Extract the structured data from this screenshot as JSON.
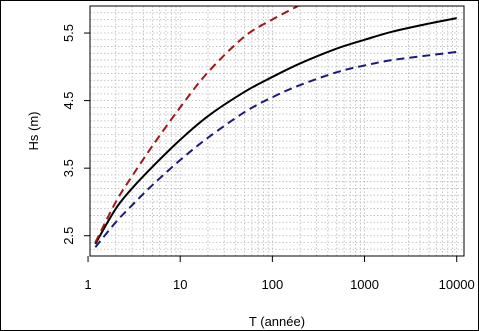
{
  "chart_data": {
    "type": "line",
    "title": "",
    "xlabel": "T (année)",
    "ylabel": "Hs (m)",
    "xscale": "log",
    "xlim": [
      1.05,
      12000
    ],
    "ylim": [
      2.2,
      5.9
    ],
    "xticks": [
      {
        "value": 1,
        "label": "1"
      },
      {
        "value": 10,
        "label": "10"
      },
      {
        "value": 100,
        "label": "100"
      },
      {
        "value": 1000,
        "label": "1000"
      },
      {
        "value": 10000,
        "label": "10000"
      }
    ],
    "yticks": [
      {
        "value": 2.5,
        "label": "2.5"
      },
      {
        "value": 3.5,
        "label": "3.5"
      },
      {
        "value": 4.5,
        "label": "4.5"
      },
      {
        "value": 5.5,
        "label": "5.5"
      }
    ],
    "grid": true,
    "series": [
      {
        "color": "#000000",
        "dash": "solid",
        "x": [
          1.2,
          2,
          3,
          5,
          10,
          20,
          50,
          100,
          200,
          500,
          1000,
          2000,
          5000,
          10000
        ],
        "y": [
          2.38,
          2.9,
          3.2,
          3.52,
          3.92,
          4.27,
          4.63,
          4.85,
          5.05,
          5.27,
          5.4,
          5.52,
          5.64,
          5.72
        ]
      },
      {
        "color": "#a01818",
        "dash": "dashed",
        "x": [
          1.2,
          2,
          3,
          5,
          10,
          20,
          50,
          100,
          190
        ],
        "y": [
          2.4,
          3.0,
          3.38,
          3.83,
          4.4,
          4.92,
          5.45,
          5.7,
          5.9
        ]
      },
      {
        "color": "#1a1a7a",
        "dash": "dashed",
        "x": [
          1.2,
          2,
          3,
          5,
          10,
          20,
          50,
          100,
          200,
          500,
          1000,
          2000,
          5000,
          10000
        ],
        "y": [
          2.33,
          2.7,
          2.95,
          3.25,
          3.62,
          3.95,
          4.33,
          4.55,
          4.73,
          4.92,
          5.02,
          5.1,
          5.17,
          5.22
        ]
      }
    ]
  }
}
